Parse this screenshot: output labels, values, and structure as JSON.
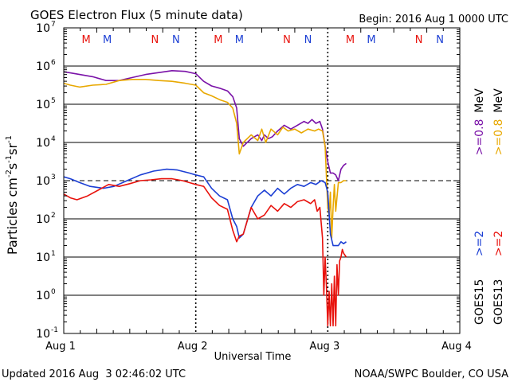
{
  "chart_data": {
    "type": "line",
    "title": "GOES Electron Flux (5 minute data)",
    "begin_label": "Begin: 2016 Aug 1 0000 UTC",
    "xlabel": "Universal Time",
    "ylabel_parts": {
      "prefix": "Particles cm",
      "exp1": "-2",
      "s": "s",
      "exp2": "-1",
      "sr": "sr",
      "exp3": "-1"
    },
    "x_unit": "days since 2016 Aug 1 00:00 UTC",
    "xlim": [
      0,
      3
    ],
    "ylim_log10": [
      -1,
      7
    ],
    "x_ticks": [
      {
        "x": 0,
        "label": "Aug 1"
      },
      {
        "x": 1,
        "label": "Aug 2"
      },
      {
        "x": 2,
        "label": "Aug 3"
      },
      {
        "x": 3,
        "label": "Aug 4"
      }
    ],
    "y_ticks": [
      {
        "exp": -1,
        "label": "10",
        "sup": "-1"
      },
      {
        "exp": 0,
        "label": "10",
        "sup": "0"
      },
      {
        "exp": 1,
        "label": "10",
        "sup": "1"
      },
      {
        "exp": 2,
        "label": "10",
        "sup": "2"
      },
      {
        "exp": 3,
        "label": "10",
        "sup": "3"
      },
      {
        "exp": 4,
        "label": "10",
        "sup": "4"
      },
      {
        "exp": 5,
        "label": "10",
        "sup": "5"
      },
      {
        "exp": 6,
        "label": "10",
        "sup": "6"
      },
      {
        "exp": 7,
        "label": "10",
        "sup": "7"
      }
    ],
    "threshold_exp": 3,
    "mn_markers": [
      {
        "x": 0.17,
        "label": "M",
        "color": "#e8120c"
      },
      {
        "x": 0.33,
        "label": "M",
        "color": "#1c3fd4"
      },
      {
        "x": 0.69,
        "label": "N",
        "color": "#e8120c"
      },
      {
        "x": 0.85,
        "label": "N",
        "color": "#1c3fd4"
      },
      {
        "x": 1.17,
        "label": "M",
        "color": "#e8120c"
      },
      {
        "x": 1.33,
        "label": "M",
        "color": "#1c3fd4"
      },
      {
        "x": 1.69,
        "label": "N",
        "color": "#e8120c"
      },
      {
        "x": 1.85,
        "label": "N",
        "color": "#1c3fd4"
      },
      {
        "x": 2.17,
        "label": "M",
        "color": "#e8120c"
      },
      {
        "x": 2.33,
        "label": "M",
        "color": "#1c3fd4"
      },
      {
        "x": 2.69,
        "label": "N",
        "color": "#e8120c"
      },
      {
        "x": 2.85,
        "label": "N",
        "color": "#1c3fd4"
      }
    ],
    "series": [
      {
        "name": "GOES15 >=0.8 MeV",
        "color": "#7a12a8",
        "x": [
          0,
          0.05,
          0.12,
          0.22,
          0.32,
          0.42,
          0.52,
          0.62,
          0.72,
          0.82,
          0.92,
          1.0,
          1.06,
          1.12,
          1.18,
          1.24,
          1.28,
          1.31,
          1.33,
          1.36,
          1.42,
          1.47,
          1.5,
          1.52,
          1.55,
          1.58,
          1.62,
          1.67,
          1.72,
          1.77,
          1.82,
          1.85,
          1.88,
          1.91,
          1.94,
          1.96,
          1.98,
          2.0,
          2.02,
          2.04,
          2.06,
          2.08,
          2.1,
          2.12,
          2.14
        ],
        "log10": [
          5.85,
          5.82,
          5.78,
          5.72,
          5.62,
          5.62,
          5.7,
          5.78,
          5.83,
          5.88,
          5.86,
          5.8,
          5.6,
          5.48,
          5.42,
          5.35,
          5.2,
          4.9,
          4.1,
          3.9,
          4.1,
          4.2,
          4.05,
          4.2,
          4.1,
          4.15,
          4.3,
          4.45,
          4.35,
          4.45,
          4.55,
          4.5,
          4.6,
          4.5,
          4.55,
          4.35,
          3.9,
          3.5,
          3.2,
          3.2,
          3.15,
          3.0,
          3.3,
          3.4,
          3.45
        ]
      },
      {
        "name": "GOES13 >=0.8 MeV",
        "color": "#e8a800",
        "x": [
          0,
          0.05,
          0.12,
          0.22,
          0.32,
          0.42,
          0.52,
          0.62,
          0.72,
          0.82,
          0.92,
          1.0,
          1.06,
          1.12,
          1.18,
          1.24,
          1.28,
          1.31,
          1.33,
          1.36,
          1.42,
          1.47,
          1.5,
          1.53,
          1.57,
          1.62,
          1.66,
          1.7,
          1.75,
          1.8,
          1.85,
          1.9,
          1.93,
          1.96,
          1.98,
          2.0,
          2.01,
          2.02,
          2.03,
          2.04,
          2.05,
          2.06,
          2.08,
          2.1,
          2.12,
          2.14
        ],
        "log10": [
          5.55,
          5.5,
          5.45,
          5.5,
          5.52,
          5.62,
          5.65,
          5.65,
          5.62,
          5.6,
          5.55,
          5.5,
          5.3,
          5.22,
          5.12,
          5.05,
          4.9,
          4.5,
          3.7,
          4.0,
          4.2,
          4.05,
          4.35,
          4.0,
          4.35,
          4.2,
          4.4,
          4.3,
          4.35,
          4.25,
          4.35,
          4.3,
          4.35,
          4.3,
          3.9,
          2.3,
          2.1,
          2.7,
          1.5,
          2.3,
          2.9,
          2.2,
          2.95,
          2.95,
          3.0,
          3.0
        ]
      },
      {
        "name": "GOES15 >=2 MeV",
        "color": "#1c3fd4",
        "x": [
          0,
          0.05,
          0.12,
          0.2,
          0.3,
          0.38,
          0.48,
          0.58,
          0.68,
          0.78,
          0.86,
          0.95,
          1.0,
          1.06,
          1.12,
          1.18,
          1.24,
          1.28,
          1.31,
          1.33,
          1.36,
          1.42,
          1.47,
          1.52,
          1.57,
          1.62,
          1.67,
          1.72,
          1.77,
          1.82,
          1.87,
          1.91,
          1.95,
          1.98,
          2.0,
          2.02,
          2.04,
          2.06,
          2.08,
          2.1,
          2.12,
          2.14
        ],
        "log10": [
          3.1,
          3.05,
          2.95,
          2.85,
          2.8,
          2.85,
          3.0,
          3.15,
          3.25,
          3.3,
          3.28,
          3.2,
          3.15,
          3.1,
          2.8,
          2.6,
          2.5,
          2.0,
          1.8,
          1.5,
          1.6,
          2.3,
          2.6,
          2.75,
          2.6,
          2.8,
          2.65,
          2.8,
          2.9,
          2.85,
          2.95,
          2.9,
          3.0,
          2.95,
          2.7,
          1.6,
          1.3,
          1.3,
          1.3,
          1.4,
          1.35,
          1.4
        ]
      },
      {
        "name": "GOES13 >=2 MeV",
        "color": "#e8120c",
        "x": [
          0,
          0.05,
          0.1,
          0.18,
          0.26,
          0.34,
          0.42,
          0.5,
          0.58,
          0.66,
          0.74,
          0.82,
          0.9,
          0.95,
          1.0,
          1.06,
          1.12,
          1.18,
          1.24,
          1.28,
          1.31,
          1.33,
          1.36,
          1.42,
          1.47,
          1.52,
          1.57,
          1.62,
          1.67,
          1.72,
          1.77,
          1.82,
          1.87,
          1.9,
          1.92,
          1.94,
          1.96,
          1.97,
          1.98,
          1.99,
          2.0,
          2.01,
          2.02,
          2.03,
          2.04,
          2.05,
          2.06,
          2.07,
          2.08,
          2.09,
          2.1,
          2.11,
          2.12,
          2.14
        ],
        "log10": [
          2.65,
          2.55,
          2.5,
          2.6,
          2.75,
          2.9,
          2.85,
          2.92,
          3.0,
          3.02,
          3.05,
          3.05,
          3.0,
          2.95,
          2.9,
          2.85,
          2.55,
          2.35,
          2.25,
          1.7,
          1.4,
          1.55,
          1.6,
          2.3,
          2.0,
          2.1,
          2.35,
          2.2,
          2.4,
          2.3,
          2.45,
          2.5,
          2.4,
          2.5,
          2.2,
          2.3,
          1.5,
          0.0,
          1.0,
          0.2,
          -0.8,
          0.1,
          -0.8,
          0.3,
          -0.8,
          0.5,
          -0.8,
          0.8,
          0.0,
          0.9,
          1.0,
          1.2,
          1.1,
          1.0
        ]
      }
    ],
    "legend": [
      {
        "label": "GOES15",
        "text": ">=2",
        "text2": ">=0.8",
        "unit": "MeV",
        "color_a": "#1c3fd4",
        "color_b": "#7a12a8"
      },
      {
        "label": "GOES13",
        "text": ">=2",
        "text2": ">=0.8",
        "unit": "MeV",
        "color_a": "#e8120c",
        "color_b": "#e8a800"
      }
    ]
  },
  "footer": {
    "updated": "Updated 2016 Aug  3 02:46:02 UTC",
    "credit": "NOAA/SWPC Boulder, CO USA"
  }
}
